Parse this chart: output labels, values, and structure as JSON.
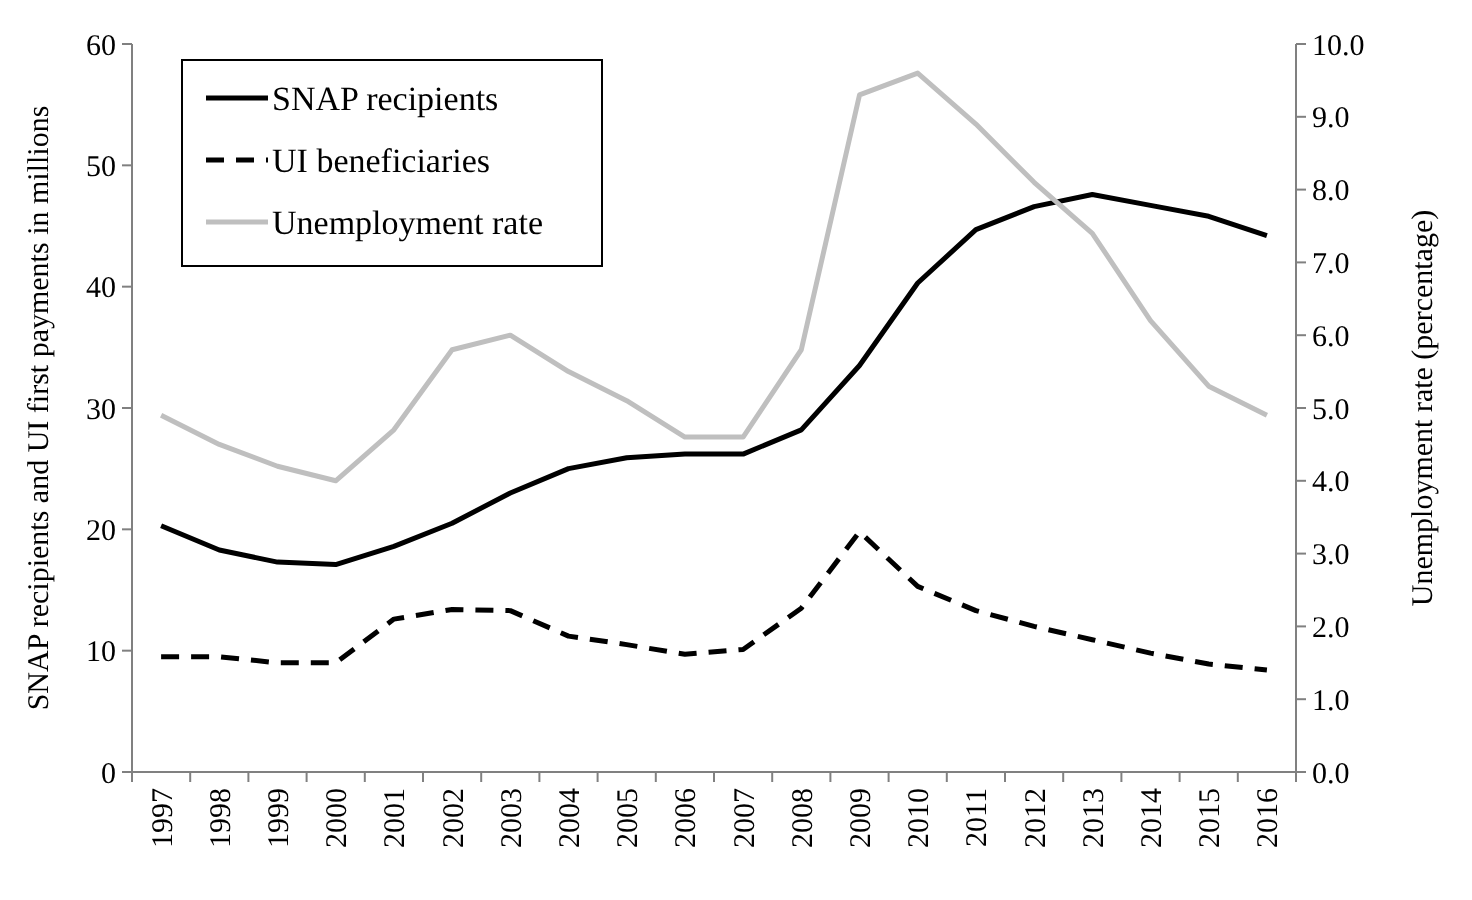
{
  "chart_data": {
    "type": "line",
    "categories": [
      "1997",
      "1998",
      "1999",
      "2000",
      "2001",
      "2002",
      "2003",
      "2004",
      "2005",
      "2006",
      "2007",
      "2008",
      "2009",
      "2010",
      "2011",
      "2012",
      "2013",
      "2014",
      "2015",
      "2016"
    ],
    "ylabel": "SNAP recipients and UI first payments in millions",
    "y2label": "Unemployment rate (percentage)",
    "ylim": [
      0,
      60
    ],
    "yticks": [
      0,
      10,
      20,
      30,
      40,
      50,
      60
    ],
    "y2lim": [
      0,
      10
    ],
    "y2ticks": [
      {
        "value": 0,
        "label": "0.0"
      },
      {
        "value": 1,
        "label": "1.0"
      },
      {
        "value": 2,
        "label": "2.0"
      },
      {
        "value": 3,
        "label": "3.0"
      },
      {
        "value": 4,
        "label": "4.0"
      },
      {
        "value": 5,
        "label": "5.0"
      },
      {
        "value": 6,
        "label": "6.0"
      },
      {
        "value": 7,
        "label": "7.0"
      },
      {
        "value": 8,
        "label": "8.0"
      },
      {
        "value": 9,
        "label": "9.0"
      },
      {
        "value": 10,
        "label": "10.0"
      }
    ],
    "legend": "top left",
    "grid": false,
    "marker": "none",
    "series": [
      {
        "name": "SNAP recipients",
        "color": "#000000",
        "line_style": "solid",
        "values": [
          20.3,
          18.3,
          17.3,
          17.1,
          18.6,
          20.5,
          23.0,
          25.0,
          25.9,
          26.2,
          26.2,
          28.2,
          33.5,
          40.3,
          44.7,
          46.6,
          47.6,
          46.7,
          45.8,
          44.2
        ]
      },
      {
        "name": "UI beneficiaries",
        "color": "#000000",
        "line_style": "dashed",
        "values": [
          9.5,
          9.5,
          9.0,
          9.0,
          12.6,
          13.4,
          13.3,
          11.2,
          10.5,
          9.7,
          10.1,
          13.5,
          19.8,
          15.3,
          13.3,
          12.0,
          10.9,
          9.8,
          8.9,
          8.4
        ]
      },
      {
        "name": "Unemployment rate",
        "color": "#bfbfbf",
        "line_style": "solid",
        "axis": "y2",
        "values": [
          4.9,
          4.5,
          4.2,
          4.0,
          4.7,
          5.8,
          6.0,
          5.5,
          5.1,
          4.6,
          4.6,
          5.8,
          9.3,
          9.6,
          8.9,
          8.1,
          7.4,
          6.2,
          5.3,
          4.9
        ]
      }
    ]
  }
}
